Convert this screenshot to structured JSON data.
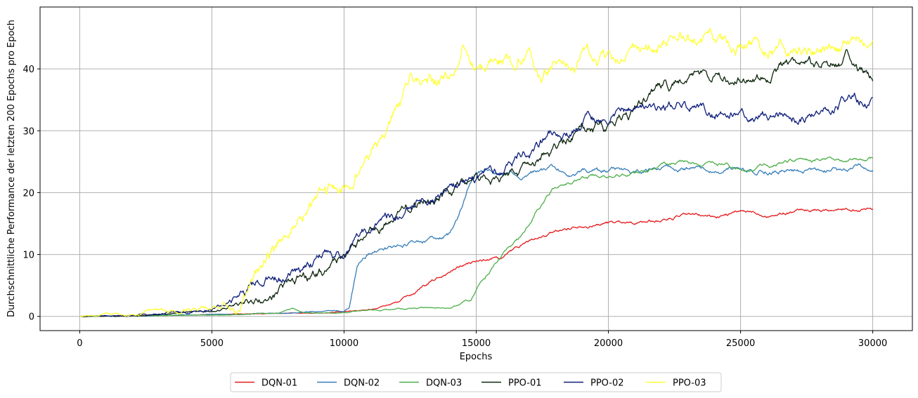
{
  "chart_data": {
    "type": "line",
    "title": "",
    "xlabel": "Epochs",
    "ylabel": "Durchschnittliche Performance der letzten 200 Epochs pro Epoch",
    "xlim": [
      -1500,
      31500
    ],
    "ylim": [
      -2.3,
      50
    ],
    "xticks": [
      0,
      5000,
      10000,
      15000,
      20000,
      25000,
      30000
    ],
    "yticks": [
      0,
      10,
      20,
      30,
      40
    ],
    "grid": true,
    "legend_position": "bottom-center, below plot",
    "series": [
      {
        "name": "DQN-01",
        "color": "#e41a1c",
        "noise": 0.35,
        "points": [
          [
            0,
            0
          ],
          [
            2000,
            0.1
          ],
          [
            5000,
            0.3
          ],
          [
            8000,
            0.5
          ],
          [
            10000,
            0.7
          ],
          [
            11000,
            1.2
          ],
          [
            12000,
            2.3
          ],
          [
            13000,
            4.5
          ],
          [
            14000,
            7.3
          ],
          [
            14500,
            8.2
          ],
          [
            15000,
            8.8
          ],
          [
            16000,
            9.5
          ],
          [
            17000,
            12.0
          ],
          [
            18000,
            13.5
          ],
          [
            19000,
            15.0
          ],
          [
            20000,
            15.2
          ],
          [
            21000,
            15.3
          ],
          [
            22000,
            15.6
          ],
          [
            23000,
            16.3
          ],
          [
            24000,
            16.0
          ],
          [
            25000,
            16.8
          ],
          [
            26000,
            16.6
          ],
          [
            27000,
            17.0
          ],
          [
            28000,
            17.3
          ],
          [
            29000,
            17.4
          ],
          [
            30000,
            17.7
          ]
        ]
      },
      {
        "name": "DQN-02",
        "color": "#377eb8",
        "noise": 0.5,
        "points": [
          [
            0,
            0
          ],
          [
            2000,
            0.1
          ],
          [
            5000,
            0.3
          ],
          [
            8000,
            0.5
          ],
          [
            10000,
            0.8
          ],
          [
            10200,
            1.5
          ],
          [
            10500,
            8.5
          ],
          [
            11000,
            10.5
          ],
          [
            12000,
            11.2
          ],
          [
            13000,
            12.0
          ],
          [
            14000,
            13.0
          ],
          [
            14300,
            15.5
          ],
          [
            14700,
            20.5
          ],
          [
            15000,
            22.5
          ],
          [
            15500,
            23.8
          ],
          [
            16000,
            23.2
          ],
          [
            17000,
            23.2
          ],
          [
            18000,
            23.6
          ],
          [
            19000,
            23.5
          ],
          [
            20000,
            23.6
          ],
          [
            21000,
            23.4
          ],
          [
            22000,
            23.8
          ],
          [
            23000,
            24.0
          ],
          [
            24000,
            23.8
          ],
          [
            25000,
            23.4
          ],
          [
            26000,
            23.8
          ],
          [
            27000,
            23.8
          ],
          [
            28000,
            24.2
          ],
          [
            29000,
            23.9
          ],
          [
            30000,
            24.1
          ]
        ]
      },
      {
        "name": "DQN-03",
        "color": "#4daf4a",
        "noise": 0.4,
        "points": [
          [
            0,
            0
          ],
          [
            2000,
            0.1
          ],
          [
            5000,
            0.2
          ],
          [
            7500,
            0.5
          ],
          [
            8000,
            1.4
          ],
          [
            8500,
            0.6
          ],
          [
            10000,
            0.6
          ],
          [
            11000,
            1.0
          ],
          [
            12000,
            1.4
          ],
          [
            13000,
            1.4
          ],
          [
            14000,
            1.6
          ],
          [
            14800,
            2.5
          ],
          [
            15200,
            5.5
          ],
          [
            15700,
            8.5
          ],
          [
            16300,
            11.0
          ],
          [
            16800,
            13.0
          ],
          [
            17300,
            17.5
          ],
          [
            18000,
            21.0
          ],
          [
            19000,
            22.8
          ],
          [
            20000,
            23.0
          ],
          [
            21000,
            23.5
          ],
          [
            22000,
            24.0
          ],
          [
            23000,
            24.8
          ],
          [
            24000,
            24.5
          ],
          [
            25000,
            24.0
          ],
          [
            26000,
            24.6
          ],
          [
            27000,
            25.0
          ],
          [
            28000,
            25.2
          ],
          [
            29000,
            25.0
          ],
          [
            30000,
            25.5
          ]
        ]
      },
      {
        "name": "PPO-01",
        "color": "#0d260d",
        "noise": 1.1,
        "points": [
          [
            0,
            0
          ],
          [
            2000,
            0.2
          ],
          [
            4000,
            0.5
          ],
          [
            5000,
            0.8
          ],
          [
            6000,
            1.8
          ],
          [
            7000,
            2.8
          ],
          [
            8000,
            4.5
          ],
          [
            9000,
            6.5
          ],
          [
            10000,
            9.0
          ],
          [
            11000,
            12.5
          ],
          [
            12000,
            15.5
          ],
          [
            13000,
            18.0
          ],
          [
            14000,
            20.0
          ],
          [
            15000,
            22.0
          ],
          [
            16000,
            22.0
          ],
          [
            17000,
            24.5
          ],
          [
            18000,
            27.0
          ],
          [
            19000,
            30.0
          ],
          [
            20000,
            30.5
          ],
          [
            21000,
            33.0
          ],
          [
            22000,
            37.0
          ],
          [
            23000,
            37.5
          ],
          [
            24000,
            39.0
          ],
          [
            25000,
            39.5
          ],
          [
            26000,
            38.5
          ],
          [
            27000,
            41.0
          ],
          [
            28000,
            40.5
          ],
          [
            29000,
            42.0
          ],
          [
            29500,
            40.0
          ],
          [
            30000,
            38.0
          ]
        ]
      },
      {
        "name": "PPO-02",
        "color": "#0f1f7a",
        "noise": 1.1,
        "points": [
          [
            0,
            0
          ],
          [
            2000,
            0.3
          ],
          [
            4000,
            0.8
          ],
          [
            5000,
            1.3
          ],
          [
            6000,
            2.8
          ],
          [
            7000,
            5.5
          ],
          [
            8000,
            6.8
          ],
          [
            9000,
            9.0
          ],
          [
            10000,
            11.0
          ],
          [
            11000,
            14.5
          ],
          [
            12000,
            16.0
          ],
          [
            13000,
            18.5
          ],
          [
            14000,
            20.5
          ],
          [
            15000,
            22.0
          ],
          [
            16000,
            24.0
          ],
          [
            17000,
            27.0
          ],
          [
            18000,
            30.0
          ],
          [
            19000,
            31.0
          ],
          [
            20000,
            31.5
          ],
          [
            21000,
            32.5
          ],
          [
            22000,
            33.5
          ],
          [
            23000,
            34.0
          ],
          [
            24000,
            33.0
          ],
          [
            25000,
            34.0
          ],
          [
            26000,
            33.5
          ],
          [
            27000,
            33.0
          ],
          [
            28000,
            34.5
          ],
          [
            29000,
            35.0
          ],
          [
            30000,
            35.5
          ]
        ]
      },
      {
        "name": "PPO-03",
        "color": "#ffff33",
        "noise": 1.5,
        "points": [
          [
            0,
            0
          ],
          [
            1000,
            0.3
          ],
          [
            3000,
            0.8
          ],
          [
            5000,
            1.4
          ],
          [
            6000,
            3.5
          ],
          [
            7000,
            10.0
          ],
          [
            8000,
            14.0
          ],
          [
            9000,
            18.0
          ],
          [
            10000,
            22.0
          ],
          [
            11000,
            25.5
          ],
          [
            12000,
            32.0
          ],
          [
            12500,
            36.0
          ],
          [
            13000,
            38.5
          ],
          [
            14000,
            38.5
          ],
          [
            14500,
            42.5
          ],
          [
            15000,
            40.0
          ],
          [
            16000,
            41.5
          ],
          [
            17000,
            41.5
          ],
          [
            17500,
            38.0
          ],
          [
            18000,
            42.5
          ],
          [
            19000,
            43.0
          ],
          [
            20000,
            42.0
          ],
          [
            21000,
            43.5
          ],
          [
            22000,
            44.5
          ],
          [
            23000,
            44.0
          ],
          [
            24000,
            43.5
          ],
          [
            25000,
            44.5
          ],
          [
            26000,
            43.0
          ],
          [
            27000,
            43.0
          ],
          [
            28000,
            44.0
          ],
          [
            29000,
            43.5
          ],
          [
            30000,
            45.5
          ]
        ]
      }
    ]
  }
}
